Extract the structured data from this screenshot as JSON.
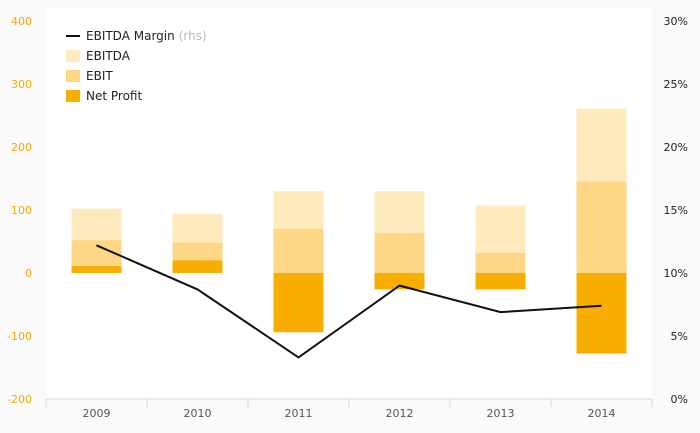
{
  "chart_data": {
    "type": "bar",
    "categories": [
      "2009",
      "2010",
      "2011",
      "2012",
      "2013",
      "2014"
    ],
    "series": [
      {
        "name": "EBITDA",
        "kind": "bar",
        "color": "#ffeabd",
        "values": [
          102,
          94,
          130,
          130,
          107,
          261
        ]
      },
      {
        "name": "EBIT",
        "kind": "bar",
        "color": "#fdd785",
        "values": [
          52,
          48,
          70,
          63,
          32,
          145
        ]
      },
      {
        "name": "Net Profit",
        "kind": "bar",
        "color": "#f7ae00",
        "values": [
          11,
          20,
          -94,
          -26,
          -26,
          -128
        ]
      },
      {
        "name": "EBITDA Margin",
        "kind": "line",
        "axis": "right",
        "color": "#111111",
        "values": [
          12.2,
          8.7,
          3.3,
          9.0,
          6.9,
          7.4
        ]
      }
    ],
    "legend": [
      {
        "label": "EBITDA Margin",
        "note": "(rhs)",
        "marker": "line",
        "color": "#111111"
      },
      {
        "label": "EBITDA",
        "note": "",
        "marker": "square",
        "color": "#ffeabd"
      },
      {
        "label": "EBIT",
        "note": "",
        "marker": "square",
        "color": "#fdd785"
      },
      {
        "label": "Net Profit",
        "note": "",
        "marker": "square",
        "color": "#f7ae00"
      }
    ],
    "yleft": {
      "min": -200,
      "max": 400,
      "ticks": [
        -200,
        -100,
        0,
        100,
        200,
        300,
        400
      ],
      "tick_labels": [
        "-200",
        "-100",
        "0",
        "100",
        "200",
        "300",
        "400"
      ],
      "color": "#f2a900"
    },
    "yright": {
      "min": 0,
      "max": 30,
      "ticks": [
        0,
        5,
        10,
        15,
        20,
        25,
        30
      ],
      "tick_labels": [
        "0%",
        "5%",
        "10%",
        "15%",
        "20%",
        "25%",
        "30%"
      ]
    },
    "grid": false,
    "legend_position": "top-left",
    "title": "",
    "xlabel": "",
    "ylabel": ""
  }
}
